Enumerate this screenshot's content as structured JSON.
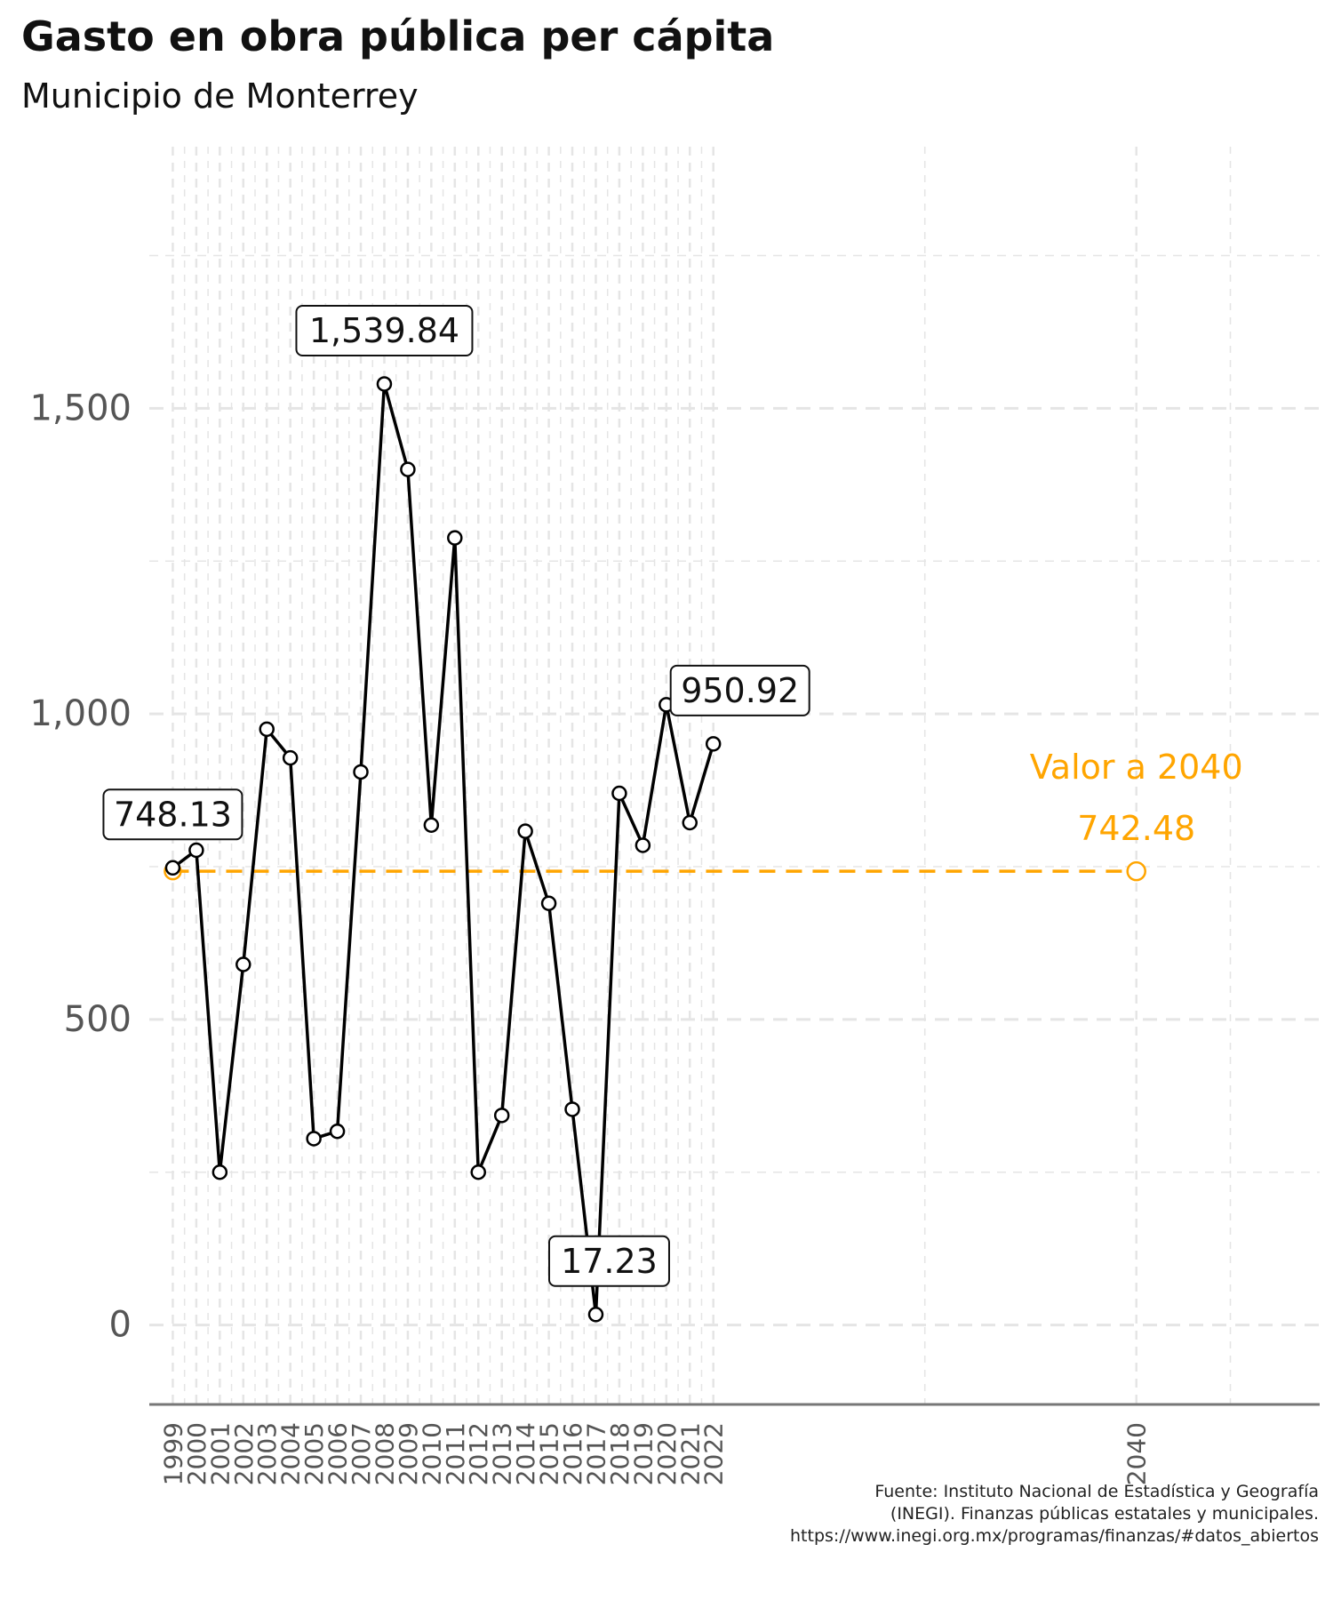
{
  "title": "Gasto en obra pública per cápita",
  "subtitle": "Municipio de Monterrey",
  "source_lines": [
    "Fuente: Instituto Nacional de Estadística y Geografía",
    "(INEGI). Finanzas públicas estatales y municipales.",
    "https://www.inegi.org.mx/programas/finanzas/#datos_abiertos"
  ],
  "colors": {
    "line": "#000000",
    "projection": "#FFA500",
    "grid": "#e5e5e5",
    "axis_text": "#555555"
  },
  "chart_data": {
    "type": "line",
    "title": "Gasto en obra pública per cápita",
    "subtitle": "Municipio de Monterrey",
    "xlabel": "",
    "ylabel": "",
    "ylim": [
      -130,
      1950
    ],
    "y_ticks": [
      0,
      500,
      1000,
      1500
    ],
    "y_tick_labels": [
      "0",
      "500",
      "1,000",
      "1,500"
    ],
    "x_ticks": [
      1999,
      2000,
      2001,
      2002,
      2003,
      2004,
      2005,
      2006,
      2007,
      2008,
      2009,
      2010,
      2011,
      2012,
      2013,
      2014,
      2015,
      2016,
      2017,
      2018,
      2019,
      2020,
      2021,
      2022,
      2040
    ],
    "x_range": [
      1998.0,
      2047.8
    ],
    "grid": true,
    "series": [
      {
        "x": [
          1999,
          2000,
          2001,
          2002,
          2003,
          2004,
          2005,
          2006,
          2007,
          2008,
          2009,
          2010,
          2011,
          2012,
          2013,
          2014,
          2015,
          2016,
          2017,
          2018,
          2019,
          2020,
          2021,
          2022
        ],
        "values": [
          748.13,
          777,
          250,
          590,
          975,
          928,
          305,
          317,
          905,
          1539.84,
          1400,
          818,
          1288,
          250,
          343,
          808,
          690,
          353,
          17.23,
          870,
          785,
          1015,
          822,
          950.92
        ]
      }
    ],
    "labels": [
      {
        "x": 1999,
        "y": 748.13,
        "text": "748.13"
      },
      {
        "x": 2008,
        "y": 1539.84,
        "text": "1,539.84"
      },
      {
        "x": 2017,
        "y": 17.23,
        "text": "17.23"
      },
      {
        "x": 2022,
        "y": 950.92,
        "text": "950.92"
      }
    ],
    "projection": {
      "from_x": 1999,
      "to_x": 2040,
      "value": 742.48,
      "label_line1": "Valor a 2040",
      "label_line2": "742.48"
    }
  }
}
